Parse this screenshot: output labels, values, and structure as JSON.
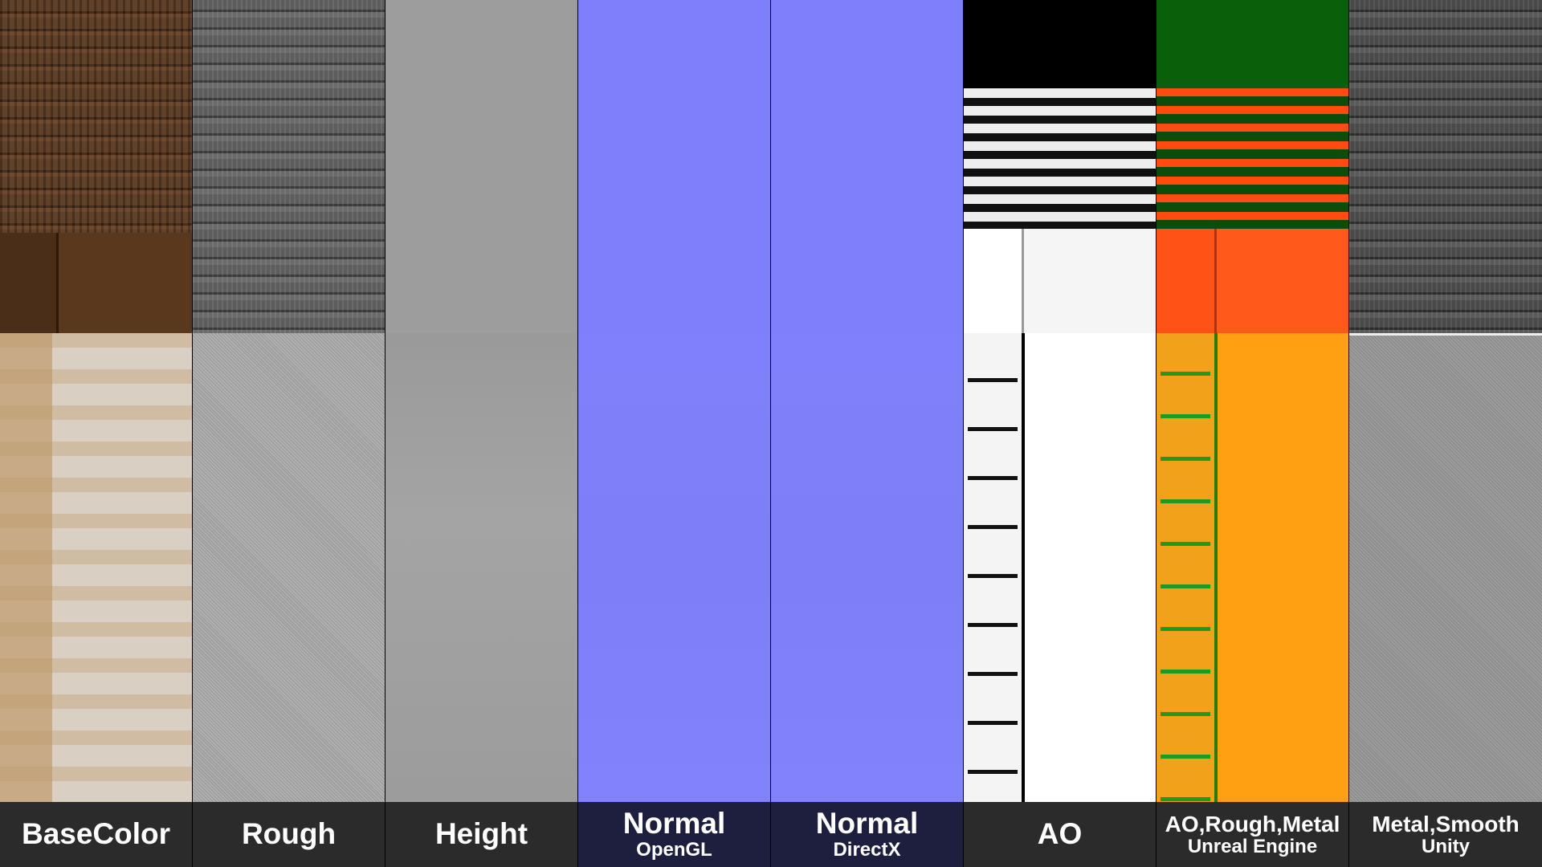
{
  "maps": [
    {
      "label": "BaseColor",
      "sublabel": ""
    },
    {
      "label": "Rough",
      "sublabel": ""
    },
    {
      "label": "Height",
      "sublabel": ""
    },
    {
      "label": "Normal",
      "sublabel": "OpenGL"
    },
    {
      "label": "Normal",
      "sublabel": "DirectX"
    },
    {
      "label": "AO",
      "sublabel": ""
    },
    {
      "label": "AO,Rough,Metal",
      "sublabel": "Unreal Engine"
    },
    {
      "label": "Metal,Smooth",
      "sublabel": "Unity"
    }
  ]
}
